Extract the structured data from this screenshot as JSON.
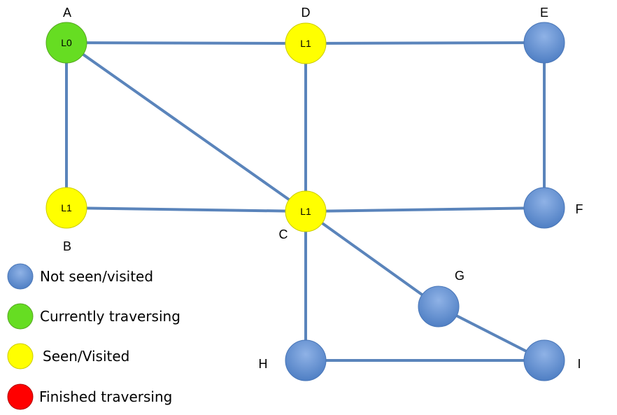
{
  "nodes": [
    {
      "id": "A",
      "label": "A",
      "inner": "L0",
      "state": "current"
    },
    {
      "id": "D",
      "label": "D",
      "inner": "L1",
      "state": "seen"
    },
    {
      "id": "E",
      "label": "E",
      "inner": "",
      "state": "unseen"
    },
    {
      "id": "B",
      "label": "B",
      "inner": "L1",
      "state": "seen"
    },
    {
      "id": "C",
      "label": "C",
      "inner": "L1",
      "state": "seen"
    },
    {
      "id": "F",
      "label": "F",
      "inner": "",
      "state": "unseen"
    },
    {
      "id": "G",
      "label": "G",
      "inner": "",
      "state": "unseen"
    },
    {
      "id": "H",
      "label": "H",
      "inner": "",
      "state": "unseen"
    },
    {
      "id": "I",
      "label": "I",
      "inner": "",
      "state": "unseen"
    }
  ],
  "edges": [
    [
      "A",
      "D"
    ],
    [
      "D",
      "E"
    ],
    [
      "A",
      "B"
    ],
    [
      "A",
      "C"
    ],
    [
      "D",
      "C"
    ],
    [
      "E",
      "F"
    ],
    [
      "B",
      "C"
    ],
    [
      "C",
      "F"
    ],
    [
      "C",
      "G"
    ],
    [
      "C",
      "H"
    ],
    [
      "G",
      "I"
    ],
    [
      "H",
      "I"
    ]
  ],
  "legend": [
    {
      "state": "unseen",
      "text": "Not seen/visited"
    },
    {
      "state": "current",
      "text": "Currently traversing"
    },
    {
      "state": "seen",
      "text": "Seen/Visited"
    },
    {
      "state": "finished",
      "text": "Finished traversing"
    }
  ],
  "colors": {
    "unseen": "#6f9ad8",
    "current": "#66dd22",
    "seen": "#ffff00",
    "finished": "#ff0000",
    "edge": "#5a84bb"
  }
}
